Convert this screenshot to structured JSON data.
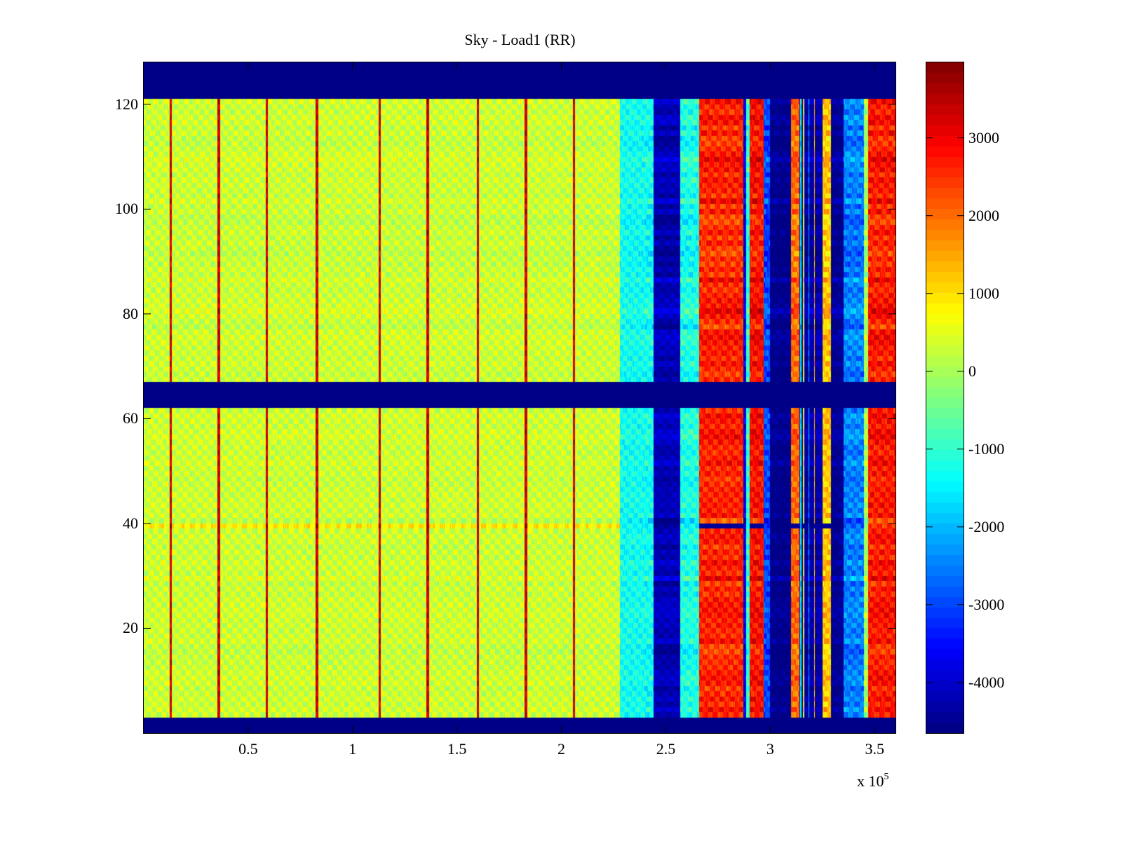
{
  "chart_data": {
    "type": "heatmap",
    "title": "Sky - Load1 (RR)",
    "xlabel": "",
    "ylabel": "",
    "x_multiplier_label": "x 10",
    "x_multiplier_exponent": "5",
    "xlim": [
      0,
      3.6
    ],
    "ylim": [
      0,
      128
    ],
    "x_ticks": [
      0.5,
      1,
      1.5,
      2,
      2.5,
      3,
      3.5
    ],
    "x_tick_labels": [
      "0.5",
      "1",
      "1.5",
      "2",
      "2.5",
      "3",
      "3.5"
    ],
    "y_ticks": [
      20,
      40,
      60,
      80,
      100,
      120
    ],
    "y_tick_labels": [
      "20",
      "40",
      "60",
      "80",
      "100",
      "120"
    ],
    "colormap": "jet",
    "clim": [
      -4650,
      3970
    ],
    "colorbar_ticks": [
      3000,
      2000,
      1000,
      0,
      -1000,
      -2000,
      -3000,
      -4000
    ],
    "colorbar_tick_labels": [
      "3000",
      "2000",
      "1000",
      "0",
      "-1000",
      "-2000",
      "-3000",
      "-4000"
    ],
    "colorbar_location": "right",
    "masked_rows": [
      [
        0,
        3
      ],
      [
        62,
        67
      ],
      [
        121,
        128
      ]
    ],
    "masked_value": -4650,
    "regions": [
      {
        "x_range": [
          0,
          2.28
        ],
        "description_value": 300,
        "note": "noisy near-zero"
      },
      {
        "x_range": [
          2.28,
          2.44
        ],
        "description_value": -1300
      },
      {
        "x_range": [
          2.44,
          2.57
        ],
        "description_value": -4200
      },
      {
        "x_range": [
          2.57,
          2.66
        ],
        "description_value": -1200
      },
      {
        "x_range": [
          2.66,
          2.87
        ],
        "description_value": 2600
      },
      {
        "x_range": [
          2.9,
          2.97
        ],
        "description_value": 2800
      },
      {
        "x_range": [
          3.0,
          3.1
        ],
        "description_value": -4600
      },
      {
        "x_range": [
          3.1,
          3.14
        ],
        "description_value": 2000
      },
      {
        "x_range": [
          3.25,
          3.29
        ],
        "description_value": 1200
      },
      {
        "x_range": [
          3.29,
          3.35
        ],
        "description_value": -4500
      },
      {
        "x_range": [
          3.35,
          3.45
        ],
        "description_value": -2500
      },
      {
        "x_range": [
          3.47,
          3.6
        ],
        "description_value": 2700
      }
    ],
    "spike_columns_x": [
      0.13,
      0.36,
      0.59,
      0.83,
      1.13,
      1.36,
      1.6,
      1.83,
      2.06
    ]
  }
}
